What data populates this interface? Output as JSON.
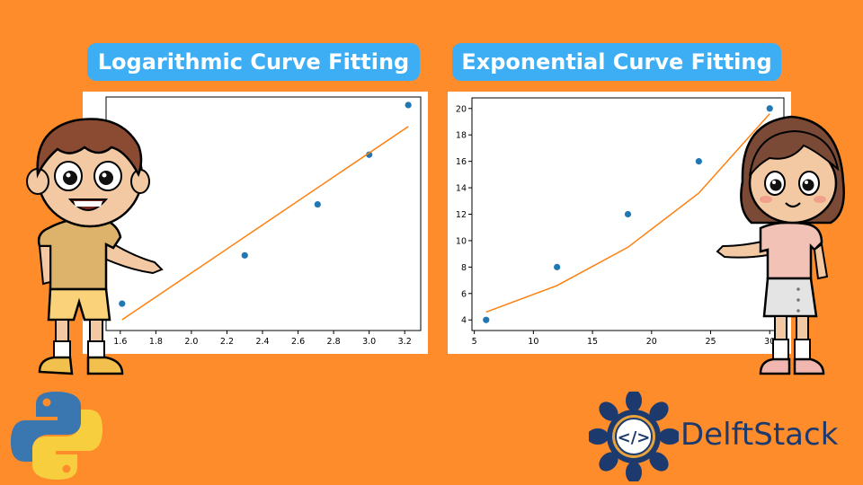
{
  "chart_data": [
    {
      "type": "scatter",
      "title": "Logarithmic Curve Fitting",
      "xlabel": "",
      "ylabel": "",
      "xlim": [
        1.52,
        3.29
      ],
      "ylim": [
        3.2,
        20.6
      ],
      "x_ticks": [
        1.6,
        1.8,
        2.0,
        2.2,
        2.4,
        2.6,
        2.8,
        3.0,
        3.2
      ],
      "x_tick_labels": [
        "1.6",
        "1.8",
        "2.0",
        "2.2",
        "2.4",
        "2.6",
        "2.8",
        "3.0",
        "3.2"
      ],
      "y_ticks": [],
      "y_tick_labels": [],
      "grid": false,
      "series": [
        {
          "kind": "points",
          "color": "#1f77b4",
          "x": [
            1.61,
            2.3,
            2.71,
            3.0,
            3.22
          ],
          "y": [
            5.2,
            8.8,
            12.6,
            16.3,
            20.0
          ]
        },
        {
          "kind": "line",
          "color": "#ff7f0e",
          "x": [
            1.61,
            3.22
          ],
          "y": [
            4.0,
            18.4
          ]
        }
      ]
    },
    {
      "type": "scatter",
      "title": "Exponential Curve Fitting",
      "xlabel": "",
      "ylabel": "",
      "xlim": [
        4.8,
        31.2
      ],
      "ylim": [
        3.2,
        20.8
      ],
      "x_ticks": [
        5,
        10,
        15,
        20,
        25,
        30
      ],
      "x_tick_labels": [
        "5",
        "10",
        "15",
        "20",
        "25",
        "30"
      ],
      "y_ticks": [
        4,
        6,
        8,
        10,
        12,
        14,
        16,
        18,
        20
      ],
      "y_tick_labels": [
        "4",
        "6",
        "8",
        "10",
        "12",
        "14",
        "16",
        "18",
        "20"
      ],
      "grid": false,
      "series": [
        {
          "kind": "points",
          "color": "#1f77b4",
          "x": [
            6,
            12,
            18,
            24,
            30
          ],
          "y": [
            4,
            8,
            12,
            16,
            20
          ]
        },
        {
          "kind": "line",
          "color": "#ff7f0e",
          "x": [
            6,
            12,
            18,
            24,
            30
          ],
          "y": [
            4.6,
            6.6,
            9.5,
            13.6,
            19.6
          ]
        }
      ]
    }
  ],
  "brand": {
    "name": "DelftStack",
    "part1": "Delft",
    "part2": "Stack",
    "logo_code": "</>"
  },
  "colors": {
    "background": "#FF8C2B",
    "title_pill": "#3EAEF4",
    "points": "#1f77b4",
    "fit_line": "#ff7f0e"
  },
  "decorations": [
    "boy-illustration",
    "girl-illustration",
    "python-logo-icon",
    "delftstack-logo-icon"
  ]
}
